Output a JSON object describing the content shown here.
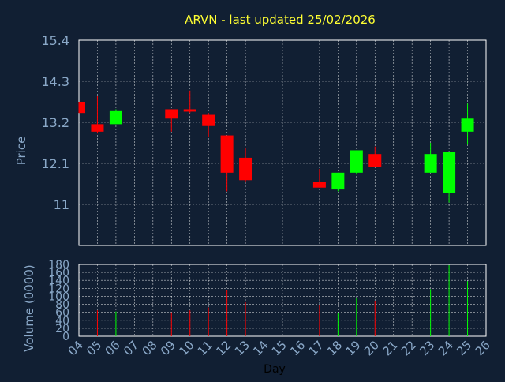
{
  "colors": {
    "background": "#111f33",
    "title": "#ffff33",
    "axis_text": "#8aa8c8",
    "grid": "#ffffff",
    "up": "#00ff00",
    "down": "#ff0000",
    "plot_border": "#ffffff"
  },
  "chart_data": {
    "type": "candlestick",
    "title": "ARVN - last updated 25/02/2026",
    "x_label": "Day",
    "days": [
      "04",
      "05",
      "06",
      "07",
      "08",
      "09",
      "10",
      "11",
      "12",
      "13",
      "14",
      "15",
      "16",
      "17",
      "18",
      "19",
      "20",
      "21",
      "22",
      "23",
      "24",
      "25",
      "26"
    ],
    "price_panel": {
      "y_label": "Price",
      "y_ticks": [
        "15.4",
        "14.3",
        "13.2",
        "12.1",
        "11"
      ],
      "y_range": [
        9.9,
        15.4
      ],
      "grid": true
    },
    "volume_panel": {
      "y_label": "Volume (0000)",
      "y_ticks": [
        "180",
        "160",
        "140",
        "120",
        "100",
        "80",
        "60",
        "40",
        "20",
        "0"
      ],
      "y_range": [
        0,
        180
      ],
      "grid": true
    },
    "candles": [
      {
        "day": "04",
        "open": 13.75,
        "high": 13.75,
        "low": 13.45,
        "close": 13.45
      },
      {
        "day": "05",
        "open": 13.15,
        "high": 13.9,
        "low": 12.9,
        "close": 12.95
      },
      {
        "day": "06",
        "open": 13.15,
        "high": 13.55,
        "low": 13.15,
        "close": 13.5
      },
      {
        "day": "09",
        "open": 13.55,
        "high": 13.55,
        "low": 12.95,
        "close": 13.3
      },
      {
        "day": "10",
        "open": 13.55,
        "high": 14.05,
        "low": 13.45,
        "close": 13.5
      },
      {
        "day": "11",
        "open": 13.4,
        "high": 13.45,
        "low": 12.8,
        "close": 13.1
      },
      {
        "day": "12",
        "open": 12.85,
        "high": 12.85,
        "low": 11.35,
        "close": 11.85
      },
      {
        "day": "13",
        "open": 12.25,
        "high": 12.5,
        "low": 11.6,
        "close": 11.65
      },
      {
        "day": "17",
        "open": 11.6,
        "high": 11.95,
        "low": 11.45,
        "close": 11.45
      },
      {
        "day": "18",
        "open": 11.4,
        "high": 11.85,
        "low": 11.35,
        "close": 11.85
      },
      {
        "day": "19",
        "open": 11.85,
        "high": 12.45,
        "low": 11.8,
        "close": 12.45
      },
      {
        "day": "20",
        "open": 12.35,
        "high": 12.55,
        "low": 12.0,
        "close": 12.0
      },
      {
        "day": "23",
        "open": 11.85,
        "high": 12.65,
        "low": 11.85,
        "close": 12.35
      },
      {
        "day": "24",
        "open": 11.3,
        "high": 12.4,
        "low": 11.05,
        "close": 12.4
      },
      {
        "day": "25",
        "open": 12.95,
        "high": 13.7,
        "low": 12.6,
        "close": 13.3
      }
    ],
    "volume": [
      {
        "day": "05",
        "value": 65,
        "dir": "down"
      },
      {
        "day": "06",
        "value": 62,
        "dir": "up"
      },
      {
        "day": "09",
        "value": 60,
        "dir": "down"
      },
      {
        "day": "10",
        "value": 65,
        "dir": "down"
      },
      {
        "day": "11",
        "value": 72,
        "dir": "down"
      },
      {
        "day": "12",
        "value": 115,
        "dir": "down"
      },
      {
        "day": "13",
        "value": 85,
        "dir": "down"
      },
      {
        "day": "17",
        "value": 78,
        "dir": "down"
      },
      {
        "day": "18",
        "value": 58,
        "dir": "up"
      },
      {
        "day": "19",
        "value": 95,
        "dir": "up"
      },
      {
        "day": "20",
        "value": 88,
        "dir": "down"
      },
      {
        "day": "23",
        "value": 118,
        "dir": "up"
      },
      {
        "day": "24",
        "value": 178,
        "dir": "up"
      },
      {
        "day": "25",
        "value": 138,
        "dir": "up"
      }
    ]
  }
}
